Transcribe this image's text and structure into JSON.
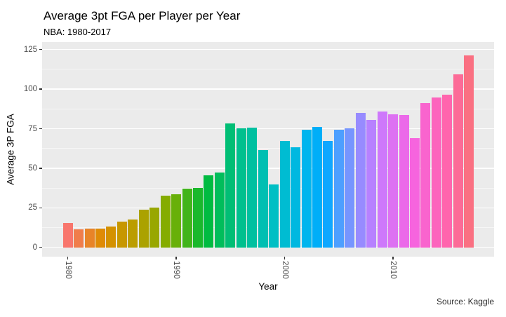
{
  "chart": {
    "title": "Average 3pt FGA per Player per Year",
    "subtitle": "NBA: 1980-2017",
    "xlabel": "Year",
    "ylabel": "Average 3P FGA",
    "caption": "Source: Kaggle"
  },
  "chart_data": {
    "type": "bar",
    "title": "Average 3pt FGA per Player per Year",
    "subtitle": "NBA: 1980-2017",
    "xlabel": "Year",
    "ylabel": "Average 3P FGA",
    "caption": "Source: Kaggle",
    "legend_position": "none",
    "grid": "on",
    "panel_bg": "#EBEBEB",
    "grid_color": "#FFFFFF",
    "x": [
      1980,
      1981,
      1982,
      1983,
      1984,
      1985,
      1986,
      1987,
      1988,
      1989,
      1990,
      1991,
      1992,
      1993,
      1994,
      1995,
      1996,
      1997,
      1998,
      1999,
      2000,
      2001,
      2002,
      2003,
      2004,
      2005,
      2006,
      2007,
      2008,
      2009,
      2010,
      2011,
      2012,
      2013,
      2014,
      2015,
      2016,
      2017
    ],
    "values": [
      15.2,
      11.6,
      12.0,
      11.7,
      13.0,
      16.3,
      17.4,
      24.0,
      25.3,
      32.7,
      33.4,
      36.9,
      37.4,
      45.4,
      47.1,
      78.5,
      75.1,
      75.8,
      61.3,
      39.7,
      67.2,
      63.1,
      74.3,
      76.1,
      67.1,
      74.3,
      75.3,
      85.0,
      80.4,
      85.9,
      84.2,
      83.6,
      69.0,
      91.3,
      94.7,
      96.5,
      109.5,
      121.4
    ],
    "colors": [
      "#F8766D",
      "#F07D4B",
      "#E88428",
      "#DF8B06",
      "#D49100",
      "#C79700",
      "#BB9D00",
      "#ABA200",
      "#98A700",
      "#85AC00",
      "#68B009",
      "#41B41B",
      "#1AB82C",
      "#00BB41",
      "#00BD5B",
      "#00BE75",
      "#00C08E",
      "#00C0A0",
      "#00BFB2",
      "#00BFC4",
      "#00BCD2",
      "#00B8E0",
      "#00B5EE",
      "#00AEF8",
      "#0FA7FF",
      "#4D9FFF",
      "#7695FF",
      "#978BFF",
      "#B781FF",
      "#CE78FB",
      "#DD71F2",
      "#EB69E9",
      "#F664DE",
      "#F964CE",
      "#FC64BD",
      "#FF65AD",
      "#FC6B97",
      "#FA7082"
    ],
    "y_ticks": [
      0,
      25,
      50,
      75,
      100,
      125
    ],
    "y_minor_ticks": [
      12.5,
      37.5,
      62.5,
      87.5,
      112.5
    ],
    "x_ticks": [
      1980,
      1990,
      2000,
      2010
    ],
    "ylim": [
      -6.2,
      129.8
    ]
  }
}
